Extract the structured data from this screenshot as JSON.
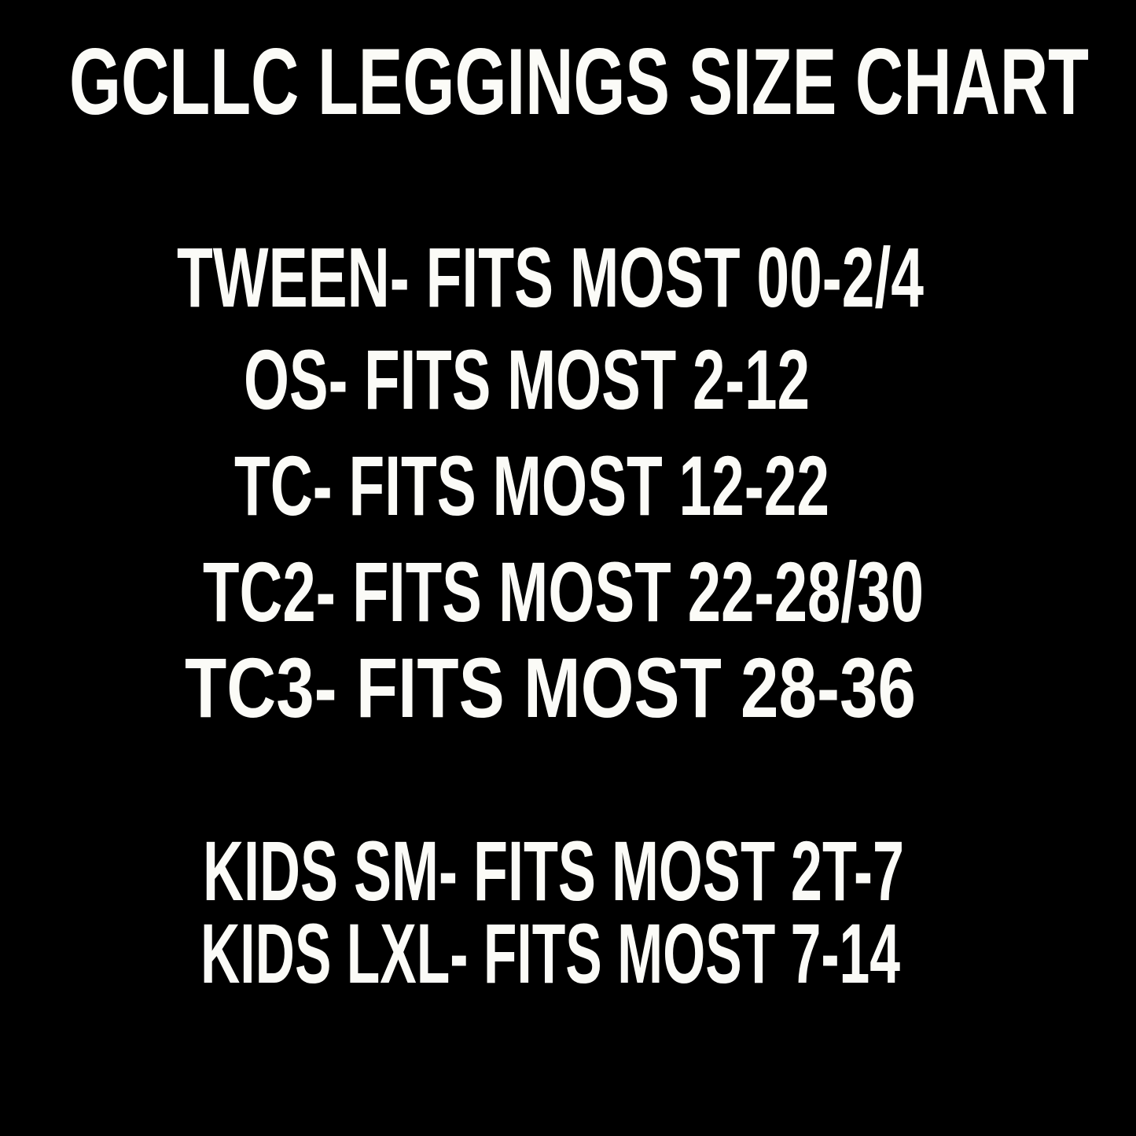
{
  "header": {
    "title": "GCLLC LEGGINGS SIZE CHART"
  },
  "sizes": [
    "TWEEN- FITS MOST 00-2/4",
    "OS- FITS MOST 2-12",
    "TC- FITS MOST 12-22",
    "TC2- FITS MOST 22-28/30",
    "TC3- FITS MOST 28-36"
  ],
  "kids_sizes": [
    "KIDS SM- FITS MOST 2T-7",
    "KIDS LXL- FITS MOST 7-14"
  ]
}
